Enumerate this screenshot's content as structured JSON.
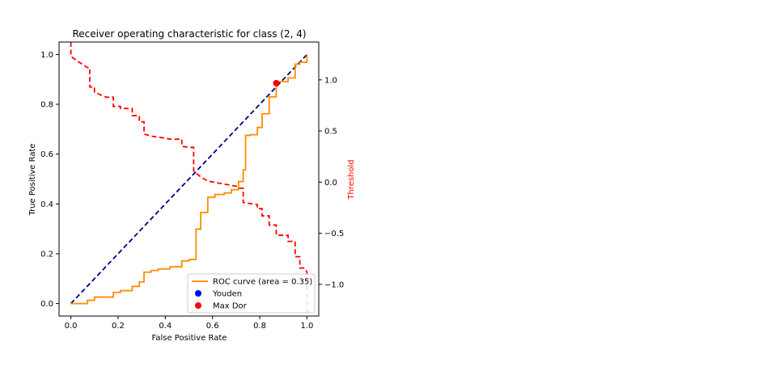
{
  "chart_data": {
    "type": "line",
    "title": "Receiver operating characteristic for class (2, 4)",
    "xlabel": "False Positive Rate",
    "ylabel": "True Positive Rate",
    "y2label": "Threshold",
    "xlim": [
      -0.05,
      1.05
    ],
    "ylim": [
      -0.05,
      1.05
    ],
    "y2lim": [
      -1.31,
      1.37
    ],
    "xticks": [
      0.0,
      0.2,
      0.4,
      0.6,
      0.8,
      1.0
    ],
    "xtick_labels": [
      "0.0",
      "0.2",
      "0.4",
      "0.6",
      "0.8",
      "1.0"
    ],
    "yticks": [
      0.0,
      0.2,
      0.4,
      0.6,
      0.8,
      1.0
    ],
    "ytick_labels": [
      "0.0",
      "0.2",
      "0.4",
      "0.6",
      "0.8",
      "1.0"
    ],
    "y2ticks": [
      1.0,
      0.5,
      0.0,
      -0.5,
      -1.0
    ],
    "y2tick_labels": [
      "1.0",
      "0.5",
      "0.0",
      "−0.5",
      "−1.0"
    ],
    "grid": false,
    "legend_position": "lower-right",
    "legend": [
      {
        "label": "ROC curve (area = 0.35)",
        "kind": "line",
        "color": "#ff8c00"
      },
      {
        "label": "Youden",
        "kind": "marker",
        "color": "#0000ff"
      },
      {
        "label": "Max Dor",
        "kind": "marker",
        "color": "#ff0000"
      }
    ],
    "series": [
      {
        "id": "roc",
        "color": "#ff8c00",
        "style": "steps",
        "points": [
          [
            0.0,
            0.0
          ],
          [
            0.07,
            0.0
          ],
          [
            0.07,
            0.013
          ],
          [
            0.1,
            0.013
          ],
          [
            0.1,
            0.026
          ],
          [
            0.18,
            0.026
          ],
          [
            0.18,
            0.045
          ],
          [
            0.21,
            0.045
          ],
          [
            0.21,
            0.052
          ],
          [
            0.26,
            0.052
          ],
          [
            0.26,
            0.069
          ],
          [
            0.29,
            0.069
          ],
          [
            0.29,
            0.087
          ],
          [
            0.31,
            0.087
          ],
          [
            0.31,
            0.126
          ],
          [
            0.34,
            0.126
          ],
          [
            0.34,
            0.133
          ],
          [
            0.37,
            0.133
          ],
          [
            0.37,
            0.139
          ],
          [
            0.42,
            0.139
          ],
          [
            0.42,
            0.148
          ],
          [
            0.47,
            0.148
          ],
          [
            0.47,
            0.171
          ],
          [
            0.5,
            0.171
          ],
          [
            0.5,
            0.177
          ],
          [
            0.53,
            0.177
          ],
          [
            0.53,
            0.299
          ],
          [
            0.55,
            0.299
          ],
          [
            0.55,
            0.366
          ],
          [
            0.58,
            0.366
          ],
          [
            0.58,
            0.427
          ],
          [
            0.61,
            0.427
          ],
          [
            0.61,
            0.438
          ],
          [
            0.65,
            0.438
          ],
          [
            0.65,
            0.444
          ],
          [
            0.68,
            0.444
          ],
          [
            0.68,
            0.457
          ],
          [
            0.71,
            0.457
          ],
          [
            0.71,
            0.49
          ],
          [
            0.73,
            0.49
          ],
          [
            0.73,
            0.537
          ],
          [
            0.74,
            0.537
          ],
          [
            0.74,
            0.675
          ],
          [
            0.76,
            0.675
          ],
          [
            0.76,
            0.678
          ],
          [
            0.79,
            0.678
          ],
          [
            0.79,
            0.707
          ],
          [
            0.81,
            0.707
          ],
          [
            0.81,
            0.762
          ],
          [
            0.84,
            0.762
          ],
          [
            0.84,
            0.83
          ],
          [
            0.87,
            0.83
          ],
          [
            0.87,
            0.891
          ],
          [
            0.92,
            0.891
          ],
          [
            0.92,
            0.906
          ],
          [
            0.95,
            0.906
          ],
          [
            0.95,
            0.961
          ],
          [
            0.97,
            0.961
          ],
          [
            0.97,
            0.969
          ],
          [
            1.0,
            0.969
          ],
          [
            1.0,
            1.0
          ]
        ]
      },
      {
        "id": "chance",
        "color": "#000080",
        "style": "dashed",
        "points": [
          [
            0.0,
            0.0
          ],
          [
            1.0,
            1.0
          ]
        ]
      },
      {
        "id": "threshold",
        "color": "#ff0000",
        "style": "dashed-steps",
        "axis": "y2",
        "points": [
          [
            0.0,
            1.37
          ],
          [
            0.0,
            1.23
          ],
          [
            0.03,
            1.18
          ],
          [
            0.05,
            1.15
          ],
          [
            0.07,
            1.12
          ],
          [
            0.08,
            1.12
          ],
          [
            0.08,
            0.93
          ],
          [
            0.1,
            0.93
          ],
          [
            0.1,
            0.88
          ],
          [
            0.13,
            0.85
          ],
          [
            0.15,
            0.83
          ],
          [
            0.18,
            0.83
          ],
          [
            0.18,
            0.74
          ],
          [
            0.21,
            0.74
          ],
          [
            0.21,
            0.72
          ],
          [
            0.26,
            0.72
          ],
          [
            0.26,
            0.65
          ],
          [
            0.29,
            0.65
          ],
          [
            0.29,
            0.59
          ],
          [
            0.31,
            0.59
          ],
          [
            0.31,
            0.47
          ],
          [
            0.34,
            0.45
          ],
          [
            0.37,
            0.44
          ],
          [
            0.4,
            0.43
          ],
          [
            0.42,
            0.42
          ],
          [
            0.47,
            0.42
          ],
          [
            0.47,
            0.35
          ],
          [
            0.5,
            0.34
          ],
          [
            0.52,
            0.34
          ],
          [
            0.52,
            0.11
          ],
          [
            0.55,
            0.05
          ],
          [
            0.58,
            0.01
          ],
          [
            0.65,
            -0.02
          ],
          [
            0.7,
            -0.04
          ],
          [
            0.71,
            -0.06
          ],
          [
            0.73,
            -0.06
          ],
          [
            0.73,
            -0.2
          ],
          [
            0.76,
            -0.21
          ],
          [
            0.79,
            -0.22
          ],
          [
            0.79,
            -0.26
          ],
          [
            0.81,
            -0.26
          ],
          [
            0.81,
            -0.33
          ],
          [
            0.84,
            -0.33
          ],
          [
            0.84,
            -0.42
          ],
          [
            0.87,
            -0.42
          ],
          [
            0.87,
            -0.52
          ],
          [
            0.92,
            -0.52
          ],
          [
            0.92,
            -0.58
          ],
          [
            0.95,
            -0.58
          ],
          [
            0.95,
            -0.73
          ],
          [
            0.97,
            -0.73
          ],
          [
            0.97,
            -0.84
          ],
          [
            0.99,
            -0.84
          ],
          [
            1.0,
            -0.88
          ],
          [
            1.0,
            -1.31
          ]
        ]
      }
    ],
    "markers": [
      {
        "id": "max-dor",
        "x": 0.87,
        "y": 0.885,
        "color": "#ff0000"
      }
    ]
  }
}
